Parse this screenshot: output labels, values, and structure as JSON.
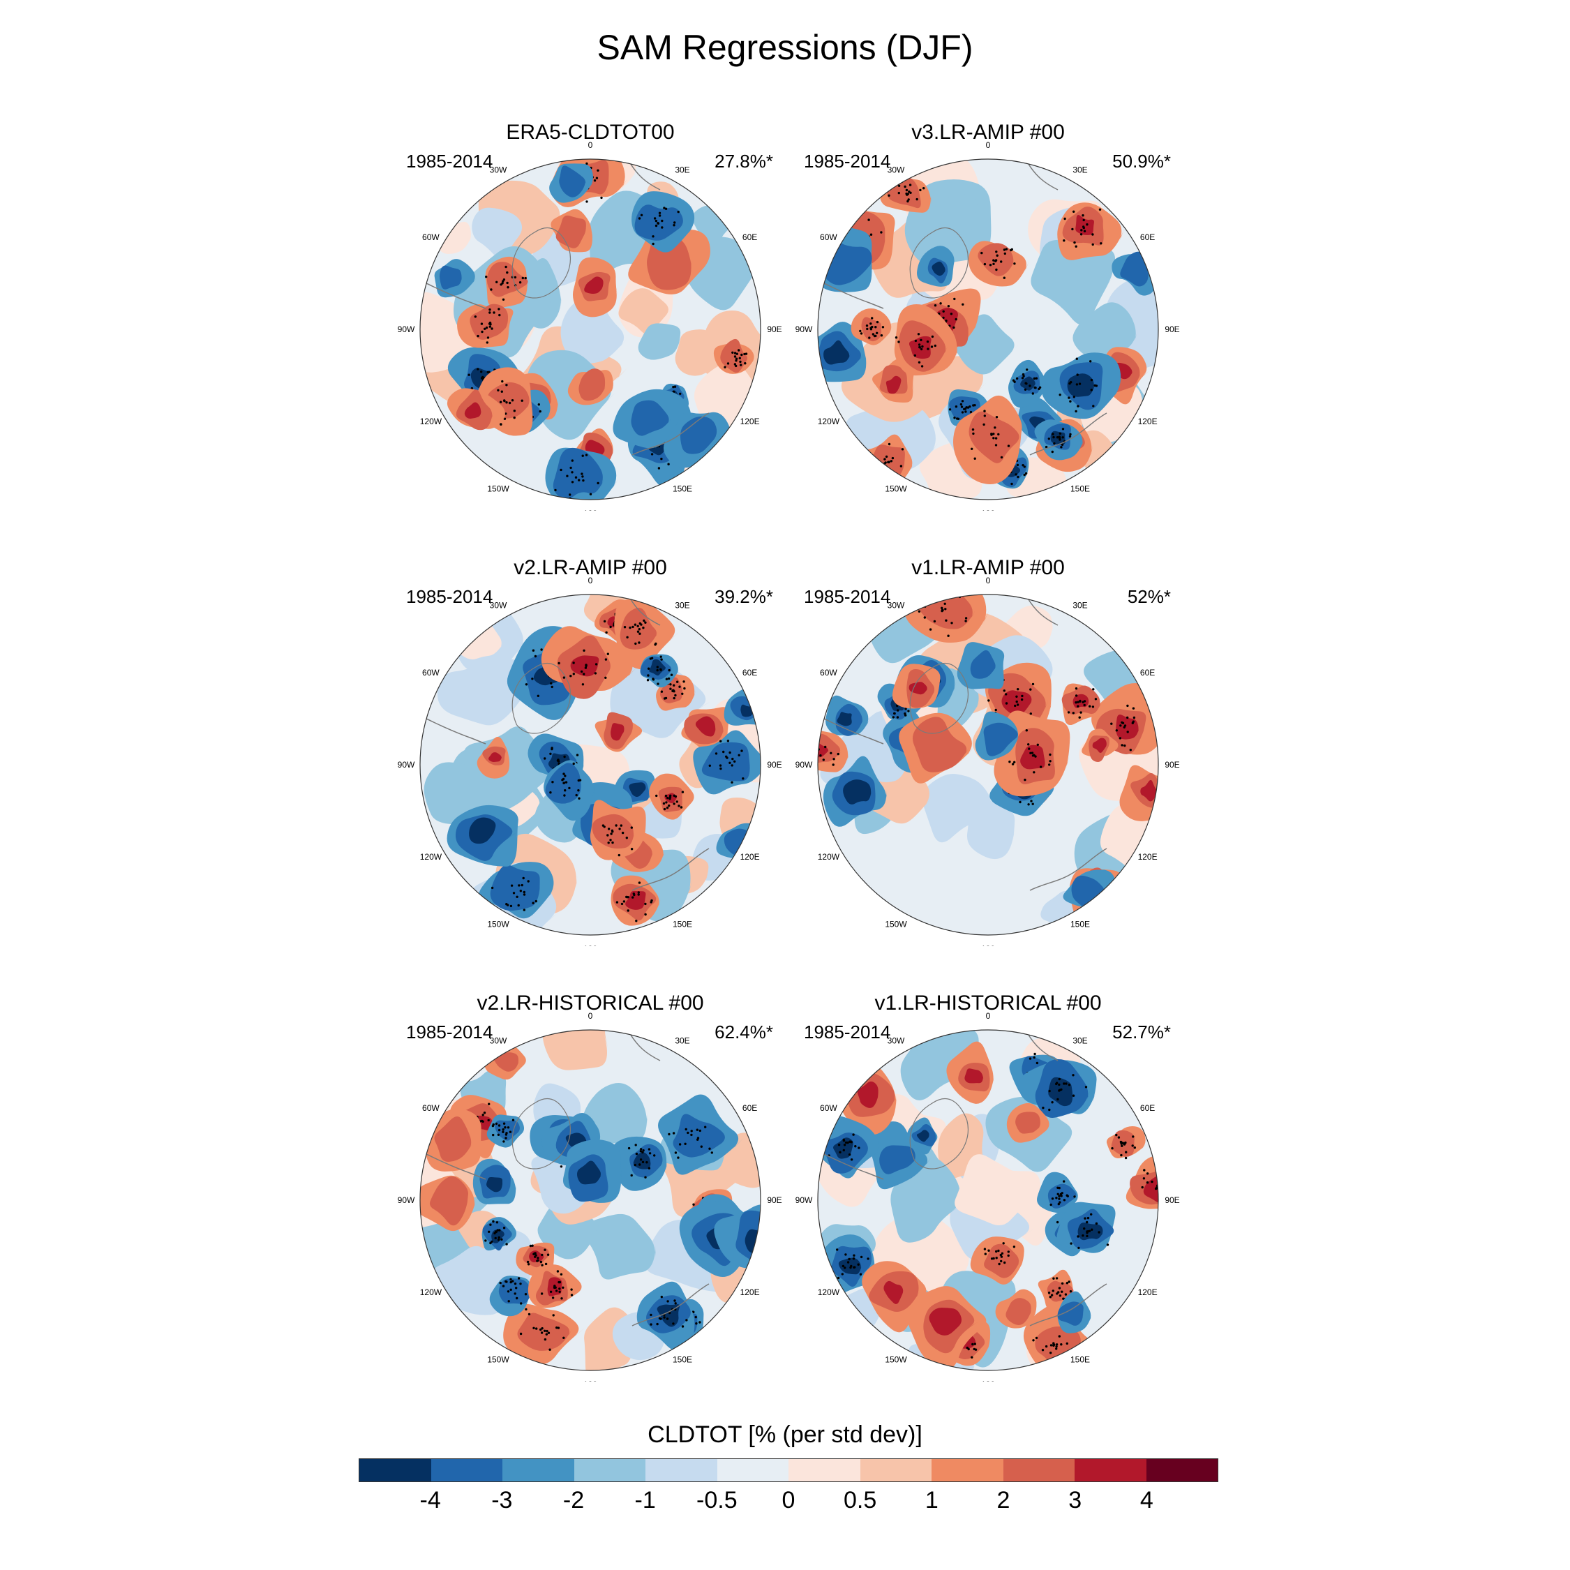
{
  "figure": {
    "title": "SAM Regressions (DJF)"
  },
  "panels": [
    {
      "title": "ERA5-CLDTOT00",
      "period": "1985-2014",
      "variance": "27.8%*"
    },
    {
      "title": "v3.LR-AMIP  #00",
      "period": "1985-2014",
      "variance": "50.9%*"
    },
    {
      "title": "v2.LR-AMIP  #00",
      "period": "1985-2014",
      "variance": "39.2%*"
    },
    {
      "title": "v1.LR-AMIP  #00",
      "period": "1985-2014",
      "variance": "52%*"
    },
    {
      "title": "v2.LR-HISTORICAL  #00",
      "period": "1985-2014",
      "variance": "62.4%*"
    },
    {
      "title": "v1.LR-HISTORICAL  #00",
      "period": "1985-2014",
      "variance": "52.7%*"
    }
  ],
  "longitude_labels": [
    {
      "deg": 0,
      "text": "0"
    },
    {
      "deg": 30,
      "text": "30E"
    },
    {
      "deg": 60,
      "text": "60E"
    },
    {
      "deg": 90,
      "text": "90E"
    },
    {
      "deg": 120,
      "text": "120E"
    },
    {
      "deg": 150,
      "text": "150E"
    },
    {
      "deg": 180,
      "text": "180"
    },
    {
      "deg": -150,
      "text": "150W"
    },
    {
      "deg": -120,
      "text": "120W"
    },
    {
      "deg": -90,
      "text": "90W"
    },
    {
      "deg": -60,
      "text": "60W"
    },
    {
      "deg": -30,
      "text": "30W"
    }
  ],
  "colorbar": {
    "title": "CLDTOT [% (per std dev)]",
    "levels": [
      "-4",
      "-3",
      "-2",
      "-1",
      "-0.5",
      "0",
      "0.5",
      "1",
      "2",
      "3",
      "4"
    ],
    "colors": [
      "#053061",
      "#2166ac",
      "#4393c3",
      "#92c5de",
      "#c6dbef",
      "#e7eef4",
      "#fbe5dc",
      "#f7c4aa",
      "#ef8a62",
      "#d6604d",
      "#b2182b",
      "#67001f"
    ]
  },
  "map_colors": {
    "coastline": "#7a7a7a",
    "stipple": "#000000",
    "frame": "#333333"
  }
}
